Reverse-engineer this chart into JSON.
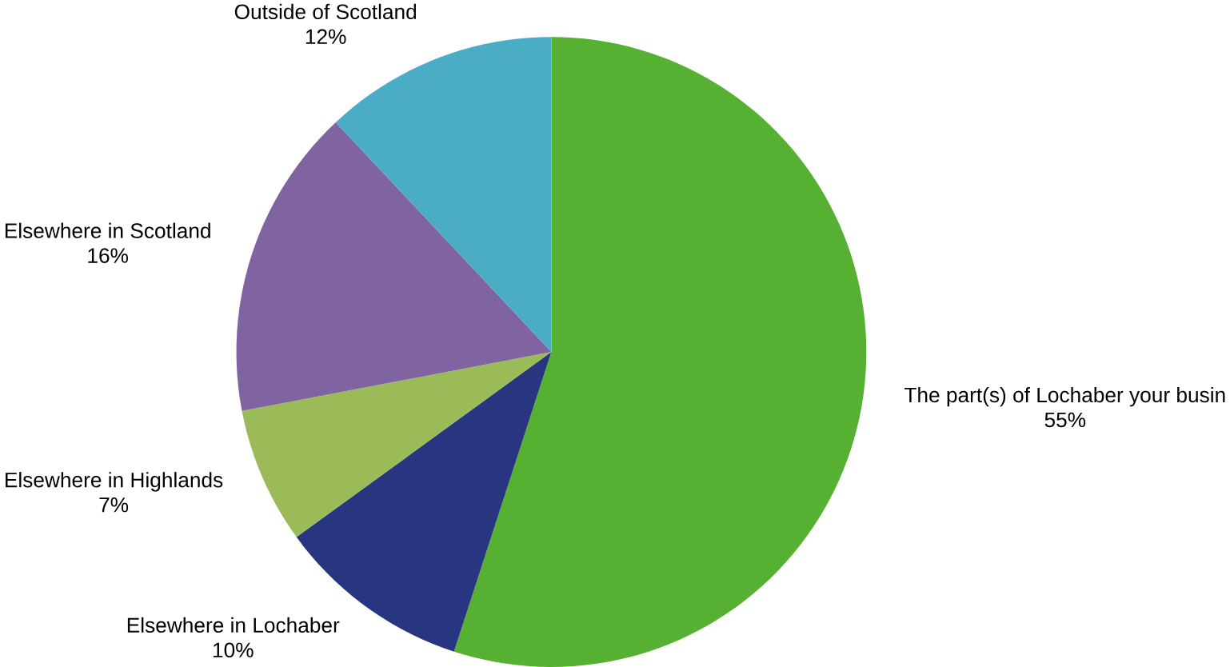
{
  "chart_data": {
    "type": "pie",
    "categories": [
      "The part(s) of Lochaber your busin",
      "Elsewhere in Lochaber",
      "Elsewhere in Highlands",
      "Elsewhere in Scotland",
      "Outside of Scotland"
    ],
    "values": [
      55,
      10,
      7,
      16,
      12
    ],
    "value_labels": [
      "55%",
      "10%",
      "7%",
      "16%",
      "12%"
    ],
    "colors": [
      "#56b031",
      "#283580",
      "#9bbb59",
      "#8064a2",
      "#4bacc6"
    ]
  }
}
